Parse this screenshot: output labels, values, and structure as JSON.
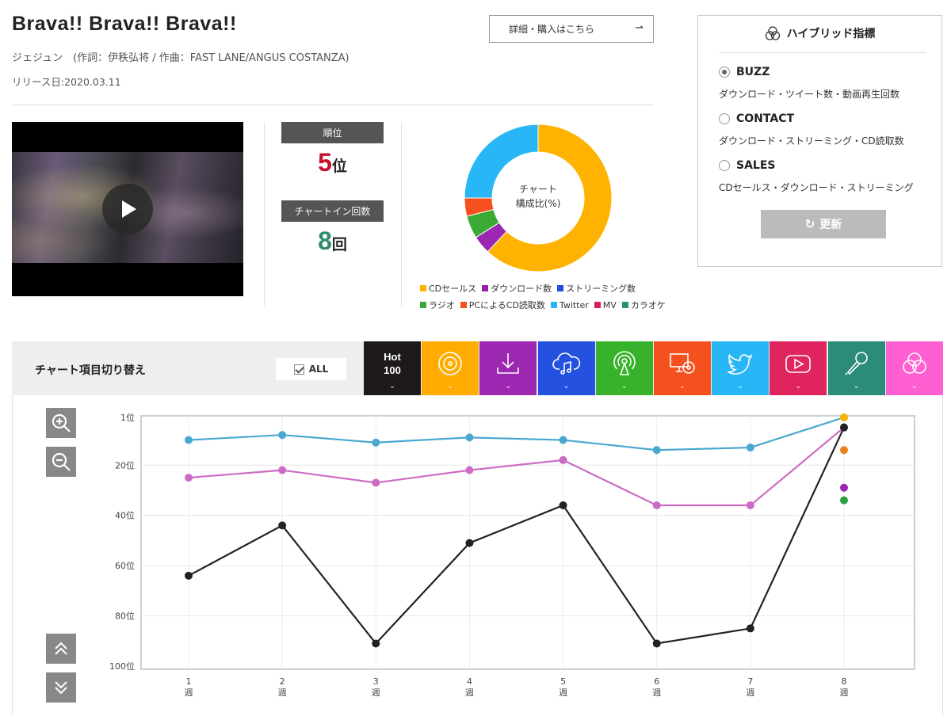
{
  "song": {
    "title": "Brava!! Brava!! Brava!!",
    "credits": "ジェジュン　(作詞：伊秩弘将 / 作曲：FAST LANE/ANGUS COSTANZA)",
    "release": "リリース日:2020.03.11",
    "buy_label": "詳細・購入はこちら",
    "buy_arrow": "⇀"
  },
  "ranking": {
    "rank_label": "順位",
    "rank_value": "5",
    "rank_unit": "位",
    "rank_color": "#c8102e",
    "chartin_label": "チャートイン回数",
    "chartin_value": "8",
    "chartin_unit": "回",
    "chartin_color": "#2e8b6f"
  },
  "composition": {
    "center_line1": "チャート",
    "center_line2": "構成比(%)",
    "legend_row1": [
      {
        "label": "CDセールス",
        "color": "#ffb300"
      },
      {
        "label": "ダウンロード数",
        "color": "#8e24aa"
      },
      {
        "label": "ストリーミング数",
        "color": "#1e4fd8"
      }
    ],
    "legend_row2": [
      {
        "label": "ラジオ",
        "color": "#3aaa35"
      },
      {
        "label": "PCによるCD読取数",
        "color": "#f4511e"
      },
      {
        "label": "Twitter",
        "color": "#29b6f6"
      },
      {
        "label": "MV",
        "color": "#d81b60"
      },
      {
        "label": "カラオケ",
        "color": "#26907a"
      }
    ]
  },
  "hybrid": {
    "title": "ハイブリッド指標",
    "options": [
      {
        "label": "BUZZ",
        "desc": "ダウンロード・ツイート数・動画再生回数",
        "selected": true
      },
      {
        "label": "CONTACT",
        "desc": "ダウンロード・ストリーミング・CD読取数",
        "selected": false
      },
      {
        "label": "SALES",
        "desc": "CDセールス・ダウンロード・ストリーミング",
        "selected": false
      }
    ],
    "update_label": "更新",
    "update_icon": "↻"
  },
  "chart_switch": {
    "label": "チャート項目切り替え",
    "all_label": "ALL",
    "hot_line1": "Hot",
    "hot_line2": "100",
    "tabs": [
      {
        "name": "hot100",
        "icon": "text",
        "color": "#1e1a1a"
      },
      {
        "name": "cd-sales",
        "icon": "disc-icon",
        "color": "#ffab00"
      },
      {
        "name": "download",
        "icon": "download-icon",
        "color": "#9c27b0"
      },
      {
        "name": "streaming",
        "icon": "cloud-music-icon",
        "color": "#2451e0"
      },
      {
        "name": "radio",
        "icon": "radio-icon",
        "color": "#38b22a"
      },
      {
        "name": "pc-cd-read",
        "icon": "pc-disc-icon",
        "color": "#f4511e"
      },
      {
        "name": "twitter",
        "icon": "twitter-icon",
        "color": "#29b6f6"
      },
      {
        "name": "mv",
        "icon": "youtube-icon",
        "color": "#e0245e"
      },
      {
        "name": "karaoke",
        "icon": "microphone-icon",
        "color": "#2a8c79"
      },
      {
        "name": "hybrid",
        "icon": "venn-icon",
        "color": "#ff5fd0"
      }
    ],
    "chevron": "⌄"
  },
  "chart_data": [
    {
      "type": "pie",
      "title": "",
      "categories": [
        "CDセールス",
        "ダウンロード数",
        "ラジオ",
        "PCによるCD読取数",
        "Twitter"
      ],
      "values": [
        62,
        4,
        5,
        4,
        25
      ],
      "colors": [
        "#ffb300",
        "#9c27b0",
        "#3aaa35",
        "#f4511e",
        "#29b6f6"
      ],
      "donut": true
    },
    {
      "type": "line",
      "x": [
        1,
        2,
        3,
        4,
        5,
        6,
        7,
        8
      ],
      "x_tick_labels": [
        "1\n週",
        "2\n週",
        "3\n週",
        "4\n週",
        "5\n週",
        "6\n週",
        "7\n週",
        "8\n週"
      ],
      "y_tick_labels": [
        "1位",
        "20位",
        "40位",
        "60位",
        "80位",
        "100位"
      ],
      "y_ticks": [
        1,
        20,
        40,
        60,
        80,
        100
      ],
      "ylim": [
        100,
        1
      ],
      "y_inverted": true,
      "grid": true,
      "series": [
        {
          "color": "#4aa8d0",
          "values": [
            10,
            8,
            11,
            9,
            10,
            14,
            13,
            1
          ]
        },
        {
          "color": "#cc6cc4",
          "values": [
            25,
            22,
            27,
            22,
            18,
            36,
            36,
            5
          ]
        },
        {
          "color": "#222222",
          "values": [
            64,
            44,
            91,
            51,
            36,
            91,
            85,
            5
          ]
        }
      ],
      "points": [
        {
          "x": 8,
          "y": 1,
          "color": "#ffb300"
        },
        {
          "x": 8,
          "y": 14,
          "color": "#ef7d1a"
        },
        {
          "x": 8,
          "y": 29,
          "color": "#9c27b0"
        },
        {
          "x": 8,
          "y": 34,
          "color": "#27a244"
        }
      ]
    }
  ]
}
